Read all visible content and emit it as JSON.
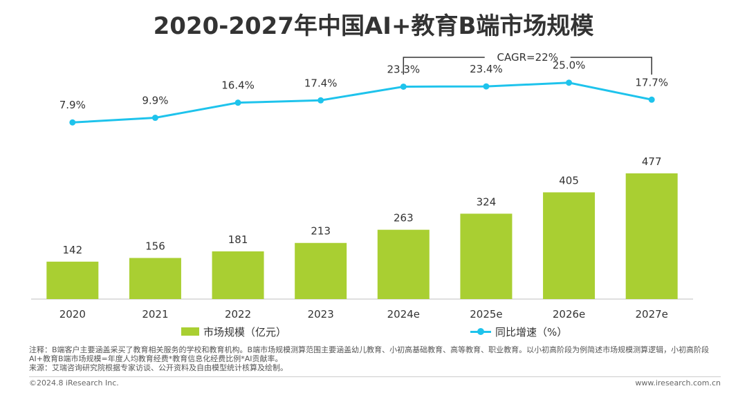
{
  "title": "2020-2027年中国AI+教育B端市场规模",
  "chart_data": {
    "type": "bar",
    "categories": [
      "2020",
      "2021",
      "2022",
      "2023",
      "2024e",
      "2025e",
      "2026e",
      "2027e"
    ],
    "series": [
      {
        "name": "市场规模（亿元）",
        "type": "bar",
        "values": [
          142,
          156,
          181,
          213,
          263,
          324,
          405,
          477
        ],
        "labels": [
          "142",
          "156",
          "181",
          "213",
          "263",
          "324",
          "405",
          "477"
        ],
        "color": "#a9cf32"
      },
      {
        "name": "同比增速（%）",
        "type": "line",
        "values": [
          7.9,
          9.9,
          16.4,
          17.4,
          23.3,
          23.4,
          25.0,
          17.7
        ],
        "labels": [
          "7.9%",
          "9.9%",
          "16.4%",
          "17.4%",
          "23.3%",
          "23.4%",
          "25.0%",
          "17.7%"
        ],
        "color": "#1ec3ec"
      }
    ],
    "annotation": {
      "text": "CAGR=22%",
      "from": "2024e",
      "to": "2027e"
    },
    "legend_position": "bottom",
    "grid": false
  },
  "notes": {
    "line1": "注释：B端客户主要涵盖采买了教育相关服务的学校和教育机构。B端市场规模测算范围主要涵盖幼儿教育、小初高基础教育、高等教育、职业教育。以小初高阶段为例简述市场规模测算逻辑，小初高阶段AI+教育B端市场规模=年度人均教育经费*教育信息化经费比例*AI贡献率。",
    "line2": "来源：艾瑞咨询研究院根据专家访谈、公开资料及自由模型统计核算及绘制。"
  },
  "footer": {
    "left": "©2024.8 iResearch Inc.",
    "right": "www.iresearch.com.cn"
  }
}
